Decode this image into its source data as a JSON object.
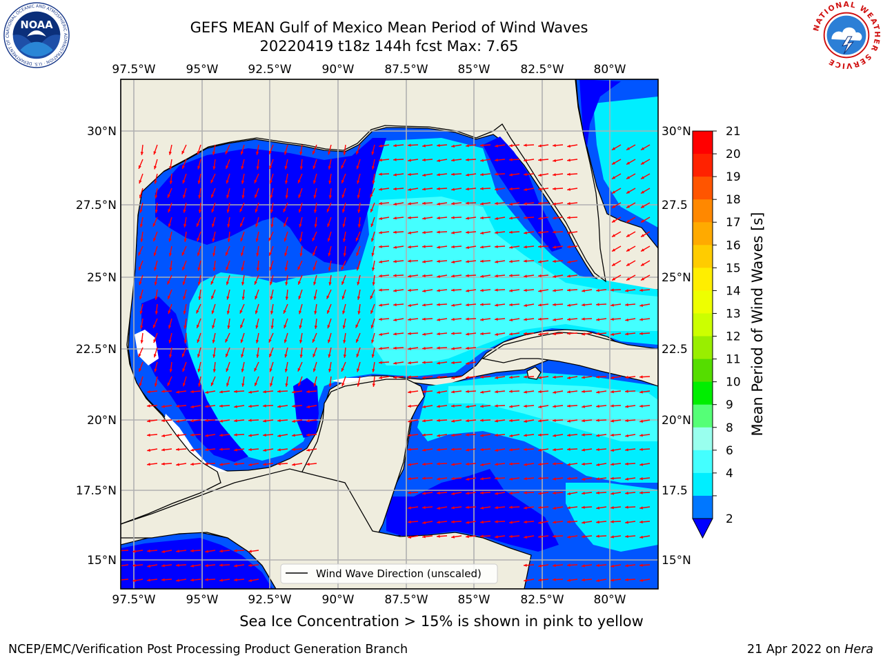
{
  "header": {
    "title_line1": "GEFS MEAN Gulf of Mexico Mean Period of Wind Waves",
    "title_line2": "20220419 t18z 144h fcst   Max: 7.65"
  },
  "logos": {
    "left": "NOAA",
    "left_ring_text": "NATIONAL OCEANIC AND ATMOSPHERIC ADMINISTRATION · U.S. DEPARTMENT OF COMMERCE",
    "right_ring_text": "NATIONAL WEATHER SERVICE"
  },
  "map": {
    "lon_ticks": [
      "97.5°W",
      "95°W",
      "92.5°W",
      "90°W",
      "87.5°W",
      "85°W",
      "82.5°W",
      "80°W"
    ],
    "lat_ticks_left": [
      "30°N",
      "27.5°N",
      "25°N",
      "22.5°N",
      "20°N",
      "17.5°N",
      "15°N"
    ],
    "lat_ticks_right": [
      "30°N",
      "27.5",
      "25°N",
      "22.5",
      "20°N",
      "17.5",
      "15°N"
    ],
    "legend_label": "Wind Wave Direction (unscaled)",
    "colors": {
      "land": "#efedde",
      "ocean_2_4": "#0055ff",
      "ocean_lt2": "#0000ff",
      "ocean_4_6": "#00eeff",
      "ocean_6_8": "#44ffff",
      "arrow": "#ff0000",
      "grid": "#b0b0b0"
    }
  },
  "colorbar": {
    "title": "Mean Period of Wind Waves [s]",
    "labels": [
      "21",
      "20",
      "19",
      "18",
      "17",
      "16",
      "15",
      "14",
      "13",
      "12",
      "11",
      "10",
      "9",
      "8",
      "6",
      "4",
      "2"
    ],
    "colors": [
      "#ff0000",
      "#ff2200",
      "#ff5500",
      "#ff8800",
      "#ffaa00",
      "#ffcc00",
      "#ffee00",
      "#eeff00",
      "#ccff00",
      "#99ee00",
      "#55dd00",
      "#00ee00",
      "#55ff77",
      "#99ffee",
      "#44ffff",
      "#00eeff",
      "#0077ff"
    ],
    "extend_color": "#0000ff"
  },
  "notes": {
    "sea_ice": "Sea Ice Concentration > 15% is shown in pink to yellow"
  },
  "footer": {
    "left": "NCEP/EMC/Verification Post Processing Product Generation Branch",
    "date": "21 Apr 2022 on ",
    "machine": "Hera"
  }
}
